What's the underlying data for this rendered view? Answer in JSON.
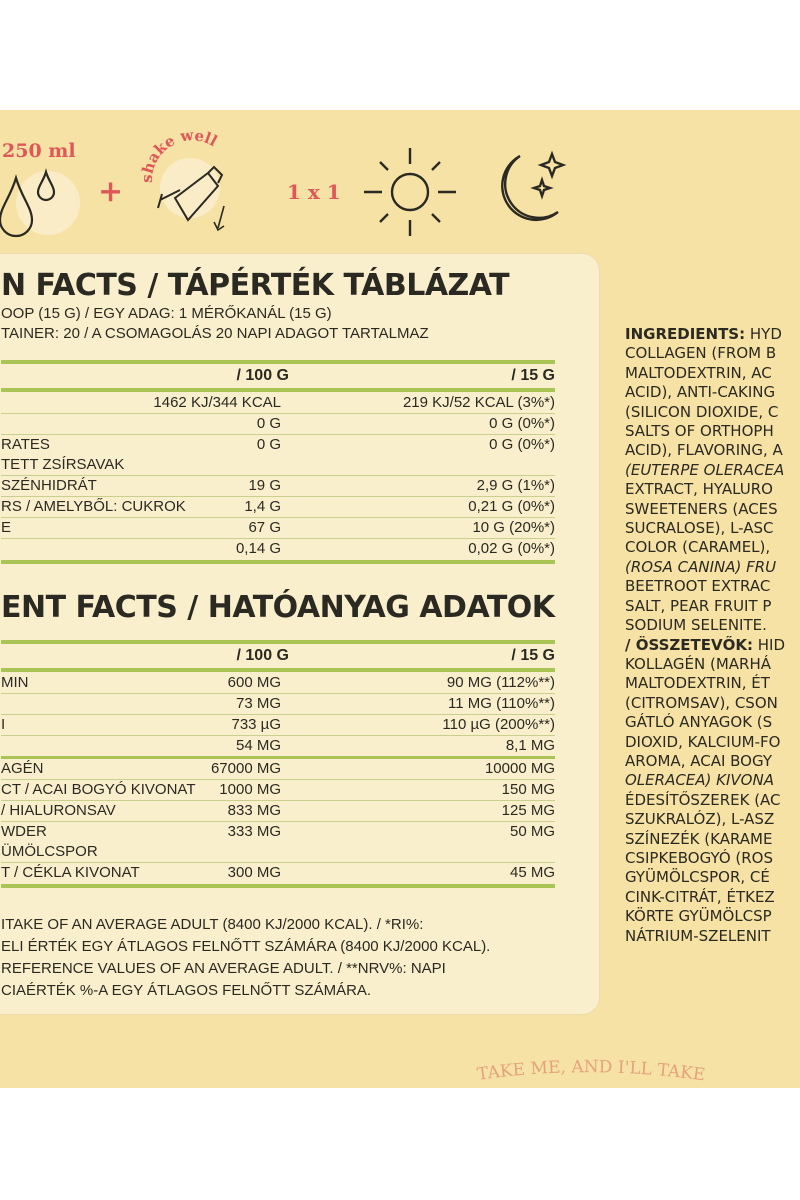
{
  "usage": {
    "water": "250 ml",
    "plus": "+",
    "shake": "shake well",
    "dosage": "1 x 1",
    "icons": [
      "water-drops-icon",
      "shake-bottle-icon",
      "sun-icon",
      "moon-stars-icon"
    ],
    "accent_color": "#e0575a"
  },
  "nutrition": {
    "title": "N FACTS / TÁPÉRTÉK TÁBLÁZAT",
    "serving_lines": [
      "OOP (15 G) / EGY ADAG: 1 MÉRŐKANÁL (15 G)",
      "TAINER: 20 / A CSOMAGOLÁS 20 NAPI ADAGOT TARTALMAZ"
    ],
    "headers": [
      "",
      "/ 100 G",
      "/ 15 G"
    ],
    "rows": [
      [
        "",
        "1462 KJ/344 KCAL",
        "219 KJ/52 KCAL (3%*)"
      ],
      [
        "",
        "0 G",
        "0 G (0%*)"
      ],
      [
        "RATES\nTETT ZSÍRSAVAK",
        "0 G",
        "0 G (0%*)"
      ],
      [
        "SZÉNHIDRÁT",
        "19 G",
        "2,9 G (1%*)"
      ],
      [
        "RS / AMELYBŐL: CUKROK",
        "1,4 G",
        "0,21 G (0%*)"
      ],
      [
        "E",
        "67 G",
        "10 G (20%*)"
      ],
      [
        "",
        "0,14 G",
        "0,02 G (0%*)"
      ]
    ]
  },
  "active": {
    "title": "ENT FACTS / HATÓANYAG ADATOK",
    "headers": [
      "",
      "/ 100 G",
      "/ 15 G"
    ],
    "rows": [
      [
        "MIN",
        "600 MG",
        "90 MG (112%**)"
      ],
      [
        "",
        "73 MG",
        "11 MG (110%**)"
      ],
      [
        "I",
        "733 µG",
        "110 µG (200%**)"
      ],
      [
        "",
        "54 MG",
        "8,1 MG"
      ],
      [
        "AGÉN",
        "67000 MG",
        "10000 MG"
      ],
      [
        "CT / ACAI BOGYÓ KIVONAT",
        "1000 MG",
        "150 MG"
      ],
      [
        "/ HIALURONSAV",
        "833 MG",
        "125 MG"
      ],
      [
        "WDER\nÜMÖLCSPOR",
        "333 MG",
        "50 MG"
      ],
      [
        "T / CÉKLA KIVONAT",
        "300 MG",
        "45 MG"
      ]
    ],
    "footnote": "ITAKE OF AN AVERAGE ADULT (8400 KJ/2000 KCAL). / *RI%:\nELI ÉRTÉK EGY ÁTLAGOS FELNŐTT SZÁMÁRA (8400 KJ/2000 KCAL).\nREFERENCE VALUES OF AN AVERAGE ADULT. / **NRV%: NAPI\nCIAÉRTÉK %-A EGY ÁTLAGOS FELNŐTT SZÁMÁRA."
  },
  "ingredients": {
    "lines": [
      "INGREDIENTS:| HYD",
      "COLLAGEN (FROM B",
      "MALTODEXTRIN, AC",
      "ACID), ANTI-CAKING",
      "(SILICON DIOXIDE, C",
      "SALTS OF ORTHOPH",
      "ACID), FLAVORING, A",
      "(EUTERPE OLERACEA",
      "EXTRACT, HYALURO",
      "SWEETENERS (ACES",
      "SUCRALOSE), L-ASC",
      "COLOR (CARAMEL),",
      "(ROSA CANINA) FRU",
      "BEETROOT EXTRAC",
      "SALT, PEAR FRUIT P",
      "SODIUM SELENITE.",
      "/ ÖSSZETEVŐK:| HID",
      "KOLLAGÉN (MARHÁ",
      "MALTODEXTRIN, ÉT",
      "(CITROMSAV), CSON",
      "GÁTLÓ ANYAGOK (S",
      "DIOXID, KALCIUM-FO",
      "AROMA, ACAI BOGY",
      "OLERACEA) KIVONA",
      "ÉDESÍTŐSZEREK (AC",
      "SZUKRALÓZ), L-ASZ",
      "SZÍNEZÉK (KARAME",
      "CSIPKEBOGYÓ (ROS",
      "GYÜMÖLCSPOR, CÉ",
      "CINK-CITRÁT, ÉTKEZ",
      "KÖRTE GYÜMÖLCSP",
      "NÁTRIUM-SZELENIT"
    ]
  },
  "slogan": "TAKE ME, AND I'LL TAKE"
}
